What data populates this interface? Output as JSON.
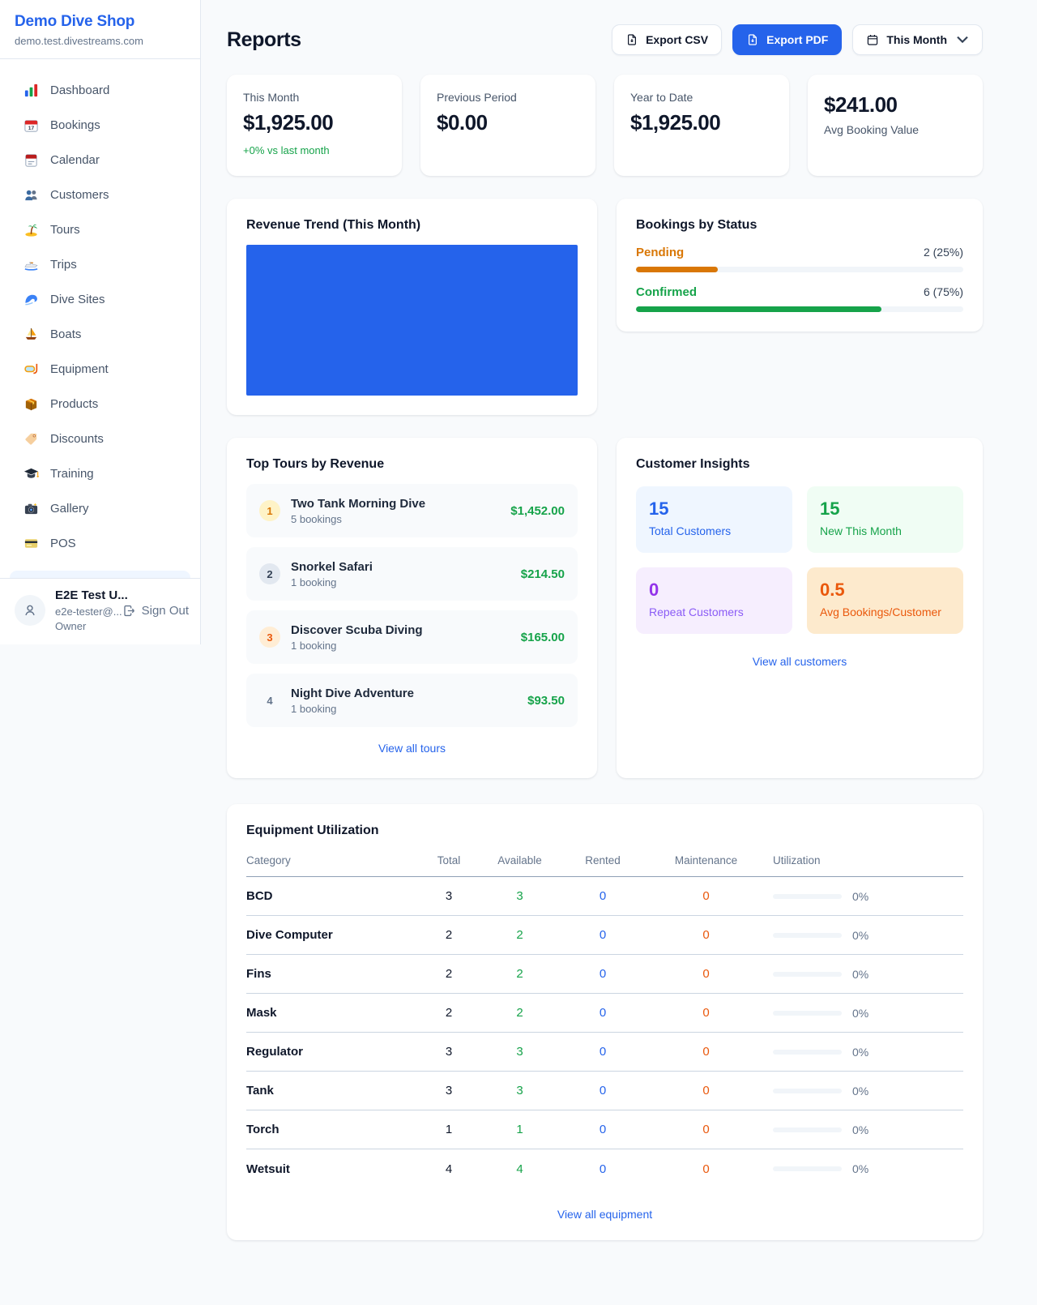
{
  "brand": {
    "name": "Demo Dive Shop",
    "domain": "demo.test.divestreams.com"
  },
  "sidebar": {
    "items": [
      {
        "icon": "bar-chart",
        "label": "Dashboard"
      },
      {
        "icon": "calendar-date",
        "label": "Bookings"
      },
      {
        "icon": "calendar",
        "label": "Calendar"
      },
      {
        "icon": "users",
        "label": "Customers"
      },
      {
        "icon": "island",
        "label": "Tours"
      },
      {
        "icon": "speedboat",
        "label": "Trips"
      },
      {
        "icon": "wave",
        "label": "Dive Sites"
      },
      {
        "icon": "sailboat",
        "label": "Boats"
      },
      {
        "icon": "diving-mask",
        "label": "Equipment"
      },
      {
        "icon": "package",
        "label": "Products"
      },
      {
        "icon": "label-tag",
        "label": "Discounts"
      },
      {
        "icon": "graduation-cap",
        "label": "Training"
      },
      {
        "icon": "camera",
        "label": "Gallery"
      },
      {
        "icon": "credit-card",
        "label": "POS"
      }
    ]
  },
  "user": {
    "name": "E2E Test U...",
    "email": "e2e-tester@...",
    "role": "Owner",
    "sign_out": "Sign Out"
  },
  "header": {
    "title": "Reports",
    "export_csv": "Export CSV",
    "export_pdf": "Export PDF",
    "period": "This Month"
  },
  "stats": [
    {
      "label": "This Month",
      "value": "$1,925.00",
      "delta": "+0% vs last month"
    },
    {
      "label": "Previous Period",
      "value": "$0.00"
    },
    {
      "label": "Year to Date",
      "value": "$1,925.00"
    },
    {
      "label": "Avg Booking Value",
      "value": "$241.00",
      "layout": "value-first"
    }
  ],
  "revenue_trend": {
    "title": "Revenue Trend (This Month)",
    "bar_color": "#2563eb"
  },
  "bookings_status": {
    "title": "Bookings by Status",
    "rows": [
      {
        "label": "Pending",
        "value": "2 (25%)",
        "pct": "25%",
        "color": "#d97706"
      },
      {
        "label": "Confirmed",
        "value": "6 (75%)",
        "pct": "75%",
        "color": "#16a34a"
      }
    ]
  },
  "top_tours": {
    "title": "Top Tours by Revenue",
    "items": [
      {
        "rank": "1",
        "rank_class": "rank-gold",
        "name": "Two Tank Morning Dive",
        "bookings": "5 bookings",
        "revenue": "$1,452.00"
      },
      {
        "rank": "2",
        "rank_class": "rank-silver",
        "name": "Snorkel Safari",
        "bookings": "1 booking",
        "revenue": "$214.50"
      },
      {
        "rank": "3",
        "rank_class": "rank-bronze",
        "name": "Discover Scuba Diving",
        "bookings": "1 booking",
        "revenue": "$165.00"
      },
      {
        "rank": "4",
        "rank_class": "rank-plain",
        "name": "Night Dive Adventure",
        "bookings": "1 booking",
        "revenue": "$93.50"
      }
    ],
    "view_all": "View all tours"
  },
  "customer_insights": {
    "title": "Customer Insights",
    "tiles": [
      {
        "value": "15",
        "label": "Total Customers",
        "theme": "blue"
      },
      {
        "value": "15",
        "label": "New This Month",
        "theme": "green"
      },
      {
        "value": "0",
        "label": "Repeat Customers",
        "theme": "purple"
      },
      {
        "value": "0.5",
        "label": "Avg Bookings/Customer",
        "theme": "orange"
      }
    ],
    "view_all": "View all customers"
  },
  "equipment": {
    "title": "Equipment Utilization",
    "columns": [
      "Category",
      "Total",
      "Available",
      "Rented",
      "Maintenance",
      "Utilization"
    ],
    "rows": [
      {
        "category": "BCD",
        "total": "3",
        "available": "3",
        "rented": "0",
        "maintenance": "0",
        "utilization": "0%"
      },
      {
        "category": "Dive Computer",
        "total": "2",
        "available": "2",
        "rented": "0",
        "maintenance": "0",
        "utilization": "0%"
      },
      {
        "category": "Fins",
        "total": "2",
        "available": "2",
        "rented": "0",
        "maintenance": "0",
        "utilization": "0%"
      },
      {
        "category": "Mask",
        "total": "2",
        "available": "2",
        "rented": "0",
        "maintenance": "0",
        "utilization": "0%"
      },
      {
        "category": "Regulator",
        "total": "3",
        "available": "3",
        "rented": "0",
        "maintenance": "0",
        "utilization": "0%"
      },
      {
        "category": "Tank",
        "total": "3",
        "available": "3",
        "rented": "0",
        "maintenance": "0",
        "utilization": "0%"
      },
      {
        "category": "Torch",
        "total": "1",
        "available": "1",
        "rented": "0",
        "maintenance": "0",
        "utilization": "0%"
      },
      {
        "category": "Wetsuit",
        "total": "4",
        "available": "4",
        "rented": "0",
        "maintenance": "0",
        "utilization": "0%"
      }
    ],
    "view_all": "View all equipment"
  },
  "chart_data": [
    {
      "type": "bar",
      "title": "Revenue Trend (This Month)",
      "note": "single solid bar filling the entire plot area, no axis labels visible",
      "values": [
        1.0
      ],
      "color": "#2563eb"
    },
    {
      "type": "bar",
      "title": "Bookings by Status",
      "categories": [
        "Pending",
        "Confirmed"
      ],
      "values": [
        2,
        6
      ],
      "percent": [
        25,
        75
      ],
      "colors": [
        "#d97706",
        "#16a34a"
      ]
    }
  ]
}
